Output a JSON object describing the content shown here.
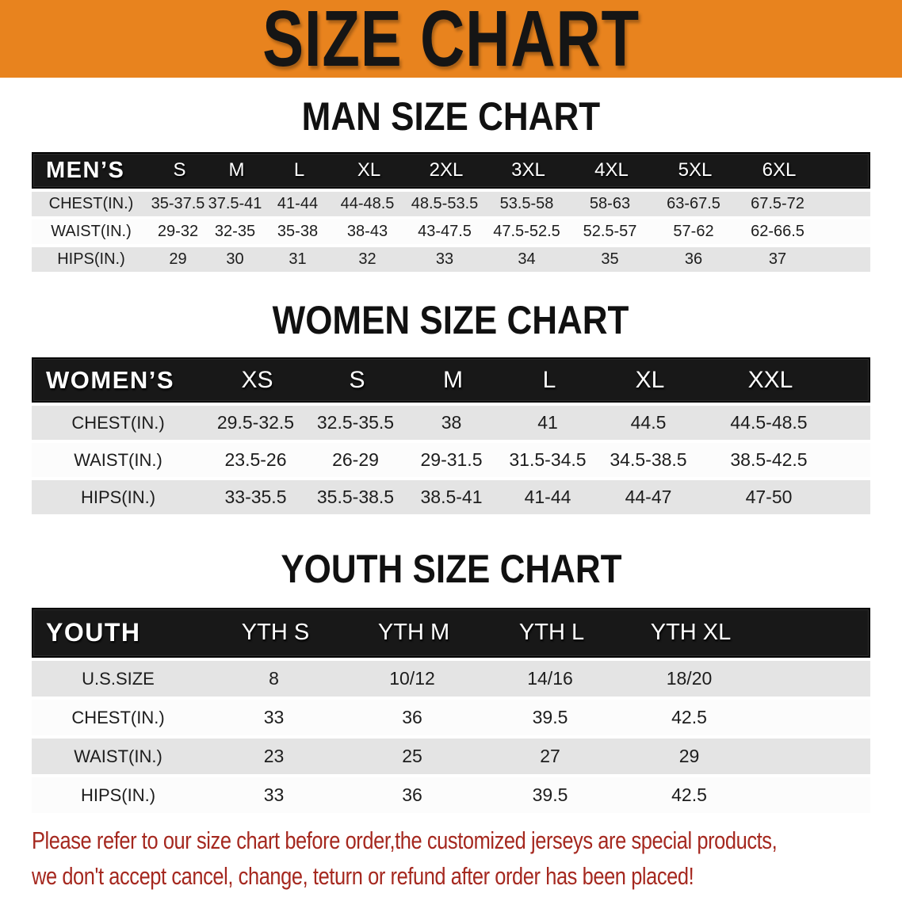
{
  "banner": {
    "title": "SIZE CHART",
    "background": "#E8831E",
    "title_color": "#151515"
  },
  "sections": [
    {
      "heading": "MAN SIZE CHART",
      "table": {
        "header_label": "MEN’S",
        "columns": [
          "S",
          "M",
          "L",
          "XL",
          "2XL",
          "3XL",
          "4XL",
          "5XL",
          "6XL"
        ],
        "rows": [
          {
            "label": "CHEST(IN.)",
            "values": [
              "35-37.5",
              "37.5-41",
              "41-44",
              "44-48.5",
              "48.5-53.5",
              "53.5-58",
              "58-63",
              "63-67.5",
              "67.5-72"
            ]
          },
          {
            "label": "WAIST(IN.)",
            "values": [
              "29-32",
              "32-35",
              "35-38",
              "38-43",
              "43-47.5",
              "47.5-52.5",
              "52.5-57",
              "57-62",
              "62-66.5"
            ]
          },
          {
            "label": "HIPS(IN.)",
            "values": [
              "29",
              "30",
              "31",
              "32",
              "33",
              "34",
              "35",
              "36",
              "37"
            ]
          }
        ]
      }
    },
    {
      "heading": "WOMEN SIZE CHART",
      "table": {
        "header_label": "WOMEN’S",
        "columns": [
          "XS",
          "S",
          "M",
          "L",
          "XL",
          "XXL"
        ],
        "rows": [
          {
            "label": "CHEST(IN.)",
            "values": [
              "29.5-32.5",
              "32.5-35.5",
              "38",
              "41",
              "44.5",
              "44.5-48.5"
            ]
          },
          {
            "label": "WAIST(IN.)",
            "values": [
              "23.5-26",
              "26-29",
              "29-31.5",
              "31.5-34.5",
              "34.5-38.5",
              "38.5-42.5"
            ]
          },
          {
            "label": "HIPS(IN.)",
            "values": [
              "33-35.5",
              "35.5-38.5",
              "38.5-41",
              "41-44",
              "44-47",
              "47-50"
            ]
          }
        ]
      }
    },
    {
      "heading": "YOUTH SIZE CHART",
      "table": {
        "header_label": "YOUTH",
        "columns": [
          "YTH S",
          "YTH M",
          "YTH L",
          "YTH XL"
        ],
        "rows": [
          {
            "label": "U.S.SIZE",
            "values": [
              "8",
              "10/12",
              "14/16",
              "18/20"
            ]
          },
          {
            "label": "CHEST(IN.)",
            "values": [
              "33",
              "36",
              "39.5",
              "42.5"
            ]
          },
          {
            "label": "WAIST(IN.)",
            "values": [
              "23",
              "25",
              "27",
              "29"
            ]
          },
          {
            "label": "HIPS(IN.)",
            "values": [
              "33",
              "36",
              "39.5",
              "42.5"
            ]
          }
        ]
      }
    }
  ],
  "note": {
    "color": "#A5281F",
    "lines": [
      "Please refer to our size chart before order,the customized jerseys are special products,",
      "we don't accept cancel, change, teturn or refund after order has been placed!"
    ]
  }
}
